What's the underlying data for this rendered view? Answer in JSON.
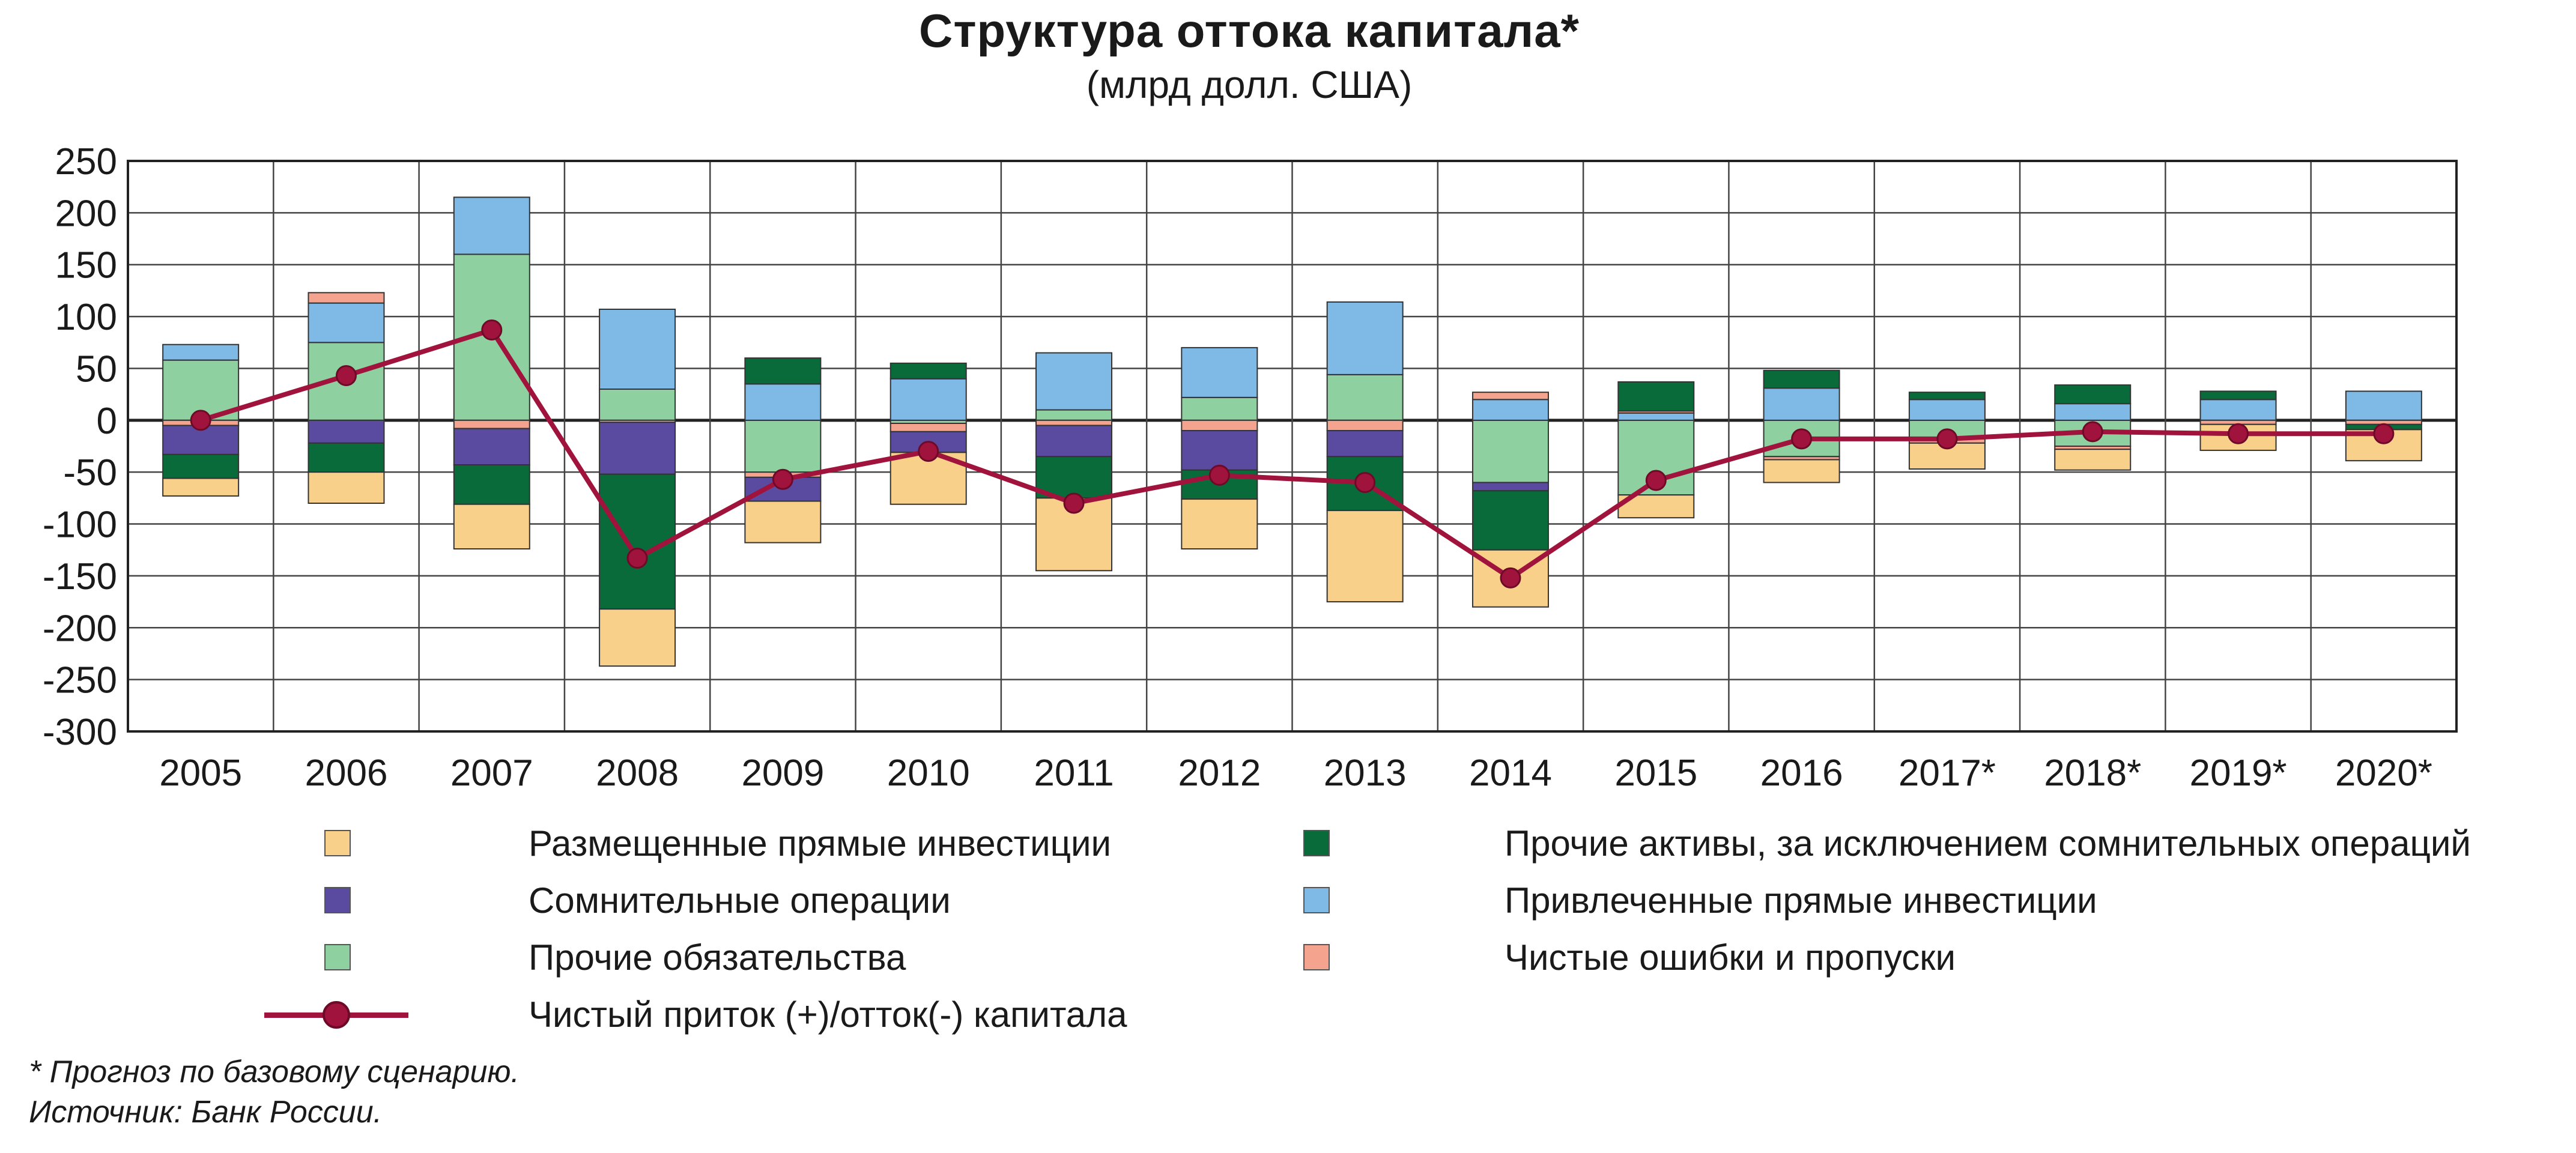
{
  "title": "Структура оттока капитала*",
  "subtitle": "(млрд долл. США)",
  "footnote": "* Прогноз по базовому сценарию.",
  "source": "Источник: Банк России.",
  "legend": [
    {
      "key": "fdi_out",
      "label": "Размещенные прямые инвестиции",
      "color": "#f8d089",
      "type": "box"
    },
    {
      "key": "dubious",
      "label": "Сомнительные операции",
      "color": "#5b4ba0",
      "type": "box"
    },
    {
      "key": "other_liab",
      "label": "Прочие обязательства",
      "color": "#8fd0a0",
      "type": "box"
    },
    {
      "key": "other_assets",
      "label": "Прочие активы, за исключением сомнительных операций",
      "color": "#0a6b3a",
      "type": "box"
    },
    {
      "key": "fdi_in",
      "label": "Привлеченные прямые инвестиции",
      "color": "#7fb9e6",
      "type": "box"
    },
    {
      "key": "errors",
      "label": "Чистые ошибки и пропуски",
      "color": "#f4a38e",
      "type": "box"
    },
    {
      "key": "net_flow",
      "label": "Чистый приток (+)/отток(-) капитала",
      "color": "#a0133d",
      "type": "line"
    }
  ],
  "chart_data": {
    "type": "bar",
    "stacked": true,
    "categories": [
      "2005",
      "2006",
      "2007",
      "2008",
      "2009",
      "2010",
      "2011",
      "2012",
      "2013",
      "2014",
      "2015",
      "2016",
      "2017*",
      "2018*",
      "2019*",
      "2020*"
    ],
    "y_ticks": [
      "250",
      "200",
      "150",
      "100",
      "50",
      "0",
      "-50",
      "-100",
      "-150",
      "-200",
      "-250",
      "-300"
    ],
    "ylim": [
      -300,
      250
    ],
    "grid": true,
    "series": [
      {
        "name": "Прочие обязательства",
        "key": "other_liab",
        "values": [
          58,
          75,
          160,
          30,
          -50,
          -3,
          10,
          22,
          44,
          -60,
          -72,
          -35,
          -18,
          -25,
          0,
          0
        ]
      },
      {
        "name": "Привлеченные прямые инвестиции",
        "key": "fdi_in",
        "values": [
          15,
          38,
          55,
          77,
          35,
          40,
          55,
          48,
          70,
          20,
          7,
          31,
          20,
          16,
          20,
          28
        ]
      },
      {
        "name": "Чистые ошибки и пропуски",
        "key": "errors",
        "values": [
          -5,
          10,
          -8,
          -2,
          -5,
          -8,
          -5,
          -10,
          -10,
          7,
          2,
          -3,
          -4,
          -3,
          -4,
          -4
        ]
      },
      {
        "name": "Сомнительные операции",
        "key": "dubious",
        "values": [
          -28,
          -22,
          -35,
          -50,
          -23,
          -20,
          -30,
          -38,
          -25,
          -8,
          0,
          0,
          0,
          0,
          0,
          0
        ]
      },
      {
        "name": "Прочие активы, за исключением сомнительных операций",
        "key": "other_assets",
        "values": [
          -23,
          -28,
          -38,
          -130,
          25,
          15,
          -40,
          -28,
          -52,
          -57,
          28,
          17,
          7,
          18,
          8,
          -5
        ]
      },
      {
        "name": "Размещенные прямые инвестиции",
        "key": "fdi_out",
        "values": [
          -17,
          -30,
          -43,
          -55,
          -40,
          -50,
          -70,
          -48,
          -88,
          -55,
          -22,
          -22,
          -25,
          -20,
          -25,
          -30
        ]
      }
    ],
    "line": {
      "name": "Чистый приток (+)/отток(-) капитала",
      "key": "net_flow",
      "values": [
        0,
        43,
        87,
        -133,
        -57,
        -30,
        -80,
        -53,
        -60,
        -152,
        -58,
        -18,
        -18,
        -11,
        -13,
        -13
      ]
    }
  }
}
